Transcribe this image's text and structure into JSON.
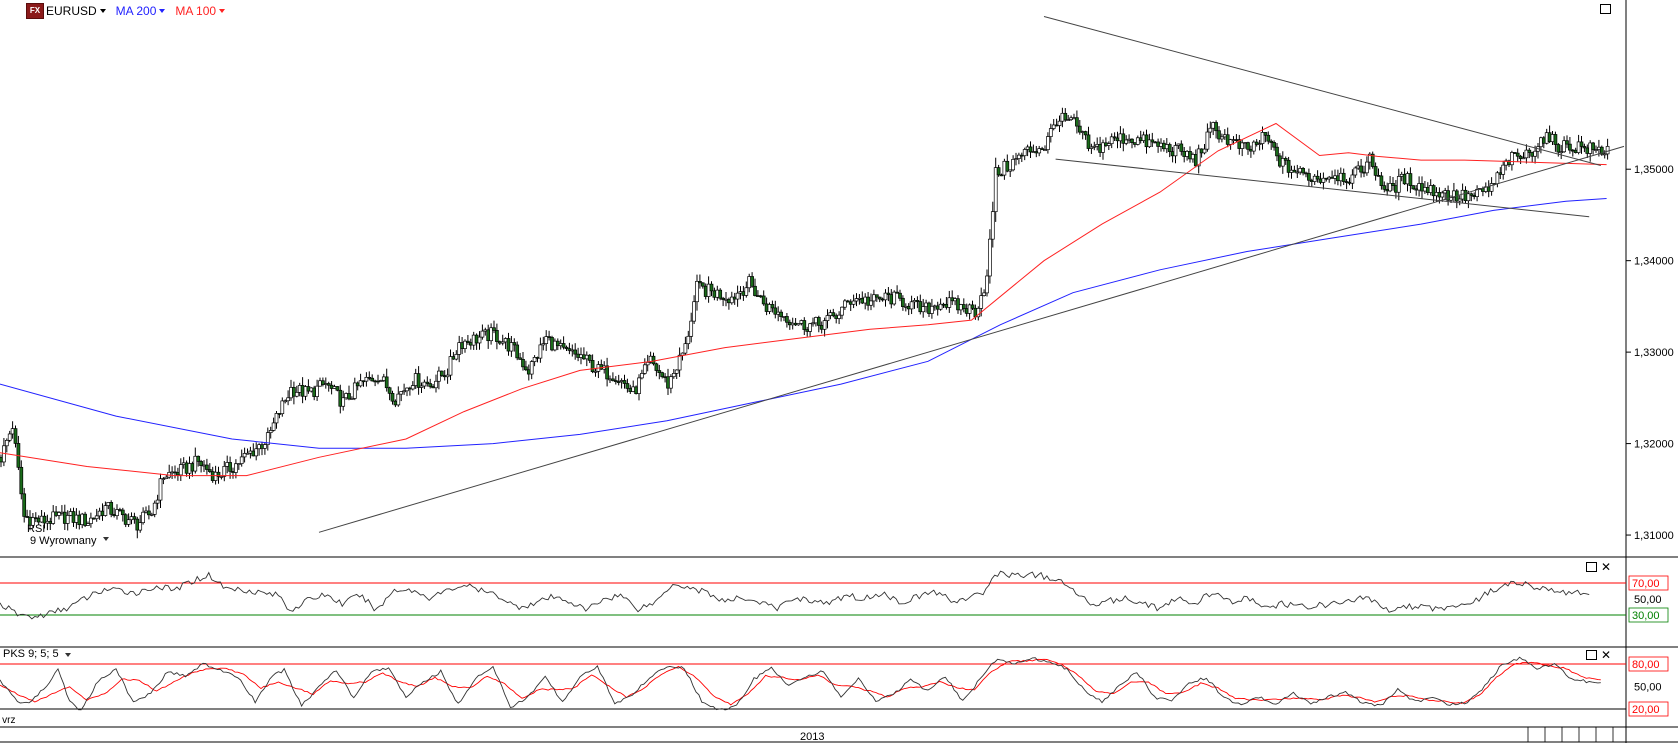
{
  "header": {
    "logo": "FX",
    "symbol": "EURUSD",
    "indicators": [
      {
        "label": "MA 200",
        "color": "#2222ff"
      },
      {
        "label": "MA 100",
        "color": "#ff2222"
      }
    ]
  },
  "rsi_panel": {
    "title": "RSI",
    "params": "9 Wyrownany",
    "levels": [
      {
        "label": "70,00",
        "value": 70,
        "color": "#ff0000"
      },
      {
        "label": "30,00",
        "value": 30,
        "color": "#008000"
      }
    ],
    "axis_tick": "50,00"
  },
  "pks_panel": {
    "title": "PKS 9; 5; 5",
    "levels": [
      {
        "label": "80,00",
        "value": 80,
        "color": "#ff0000"
      },
      {
        "label": "20,00",
        "value": 20,
        "color": "#000000"
      }
    ],
    "axis_tick": "50,00"
  },
  "time_axis": {
    "left_fragment": ") vrz",
    "year_label": "2013"
  },
  "chart_data": {
    "type": "candlestick",
    "title": "EURUSD",
    "y_ticks": [
      "1,35000",
      "1,34000",
      "1,33000",
      "1,32000",
      "1,31000"
    ],
    "y_tick_values": [
      1.35,
      1.34,
      1.33,
      1.32,
      1.31
    ],
    "ylim": [
      1.3076,
      1.3685
    ],
    "x_count": 220,
    "ma100_color": "#ff2222",
    "ma200_color": "#2222ff",
    "close_path": [
      [
        0,
        1.3185
      ],
      [
        4,
        1.322
      ],
      [
        8,
        1.312
      ],
      [
        14,
        1.3115
      ],
      [
        22,
        1.312
      ],
      [
        30,
        1.3115
      ],
      [
        36,
        1.313
      ],
      [
        42,
        1.312
      ],
      [
        47,
        1.3112
      ],
      [
        52,
        1.3125
      ],
      [
        56,
        1.3165
      ],
      [
        62,
        1.317
      ],
      [
        68,
        1.318
      ],
      [
        74,
        1.3165
      ],
      [
        80,
        1.3175
      ],
      [
        86,
        1.319
      ],
      [
        92,
        1.3205
      ],
      [
        96,
        1.3235
      ],
      [
        100,
        1.326
      ],
      [
        106,
        1.3255
      ],
      [
        112,
        1.3265
      ],
      [
        118,
        1.3245
      ],
      [
        124,
        1.3265
      ],
      [
        130,
        1.3275
      ],
      [
        136,
        1.325
      ],
      [
        142,
        1.327
      ],
      [
        148,
        1.3265
      ],
      [
        154,
        1.328
      ],
      [
        158,
        1.331
      ],
      [
        164,
        1.3315
      ],
      [
        170,
        1.332
      ],
      [
        176,
        1.3305
      ],
      [
        182,
        1.328
      ],
      [
        188,
        1.3315
      ],
      [
        194,
        1.33
      ],
      [
        200,
        1.3295
      ],
      [
        206,
        1.328
      ],
      [
        212,
        1.3275
      ],
      [
        218,
        1.3255
      ],
      [
        224,
        1.329
      ],
      [
        230,
        1.3265
      ],
      [
        236,
        1.3305
      ],
      [
        240,
        1.337
      ],
      [
        246,
        1.3365
      ],
      [
        252,
        1.336
      ],
      [
        258,
        1.3375
      ],
      [
        264,
        1.335
      ],
      [
        270,
        1.334
      ],
      [
        276,
        1.333
      ],
      [
        282,
        1.333
      ],
      [
        288,
        1.334
      ],
      [
        294,
        1.336
      ],
      [
        300,
        1.3355
      ],
      [
        306,
        1.336
      ],
      [
        312,
        1.3355
      ],
      [
        318,
        1.3345
      ],
      [
        324,
        1.3355
      ],
      [
        330,
        1.335
      ],
      [
        336,
        1.3345
      ],
      [
        340,
        1.338
      ],
      [
        343,
        1.3495
      ],
      [
        348,
        1.3505
      ],
      [
        354,
        1.352
      ],
      [
        360,
        1.3525
      ],
      [
        364,
        1.3555
      ],
      [
        370,
        1.355
      ],
      [
        376,
        1.352
      ],
      [
        382,
        1.353
      ],
      [
        388,
        1.3535
      ],
      [
        394,
        1.353
      ],
      [
        400,
        1.3525
      ],
      [
        406,
        1.352
      ],
      [
        412,
        1.351
      ],
      [
        418,
        1.3545
      ],
      [
        424,
        1.353
      ],
      [
        430,
        1.352
      ],
      [
        436,
        1.3535
      ],
      [
        442,
        1.3505
      ],
      [
        448,
        1.3495
      ],
      [
        454,
        1.349
      ],
      [
        460,
        1.3495
      ],
      [
        466,
        1.349
      ],
      [
        472,
        1.351
      ],
      [
        478,
        1.3475
      ],
      [
        484,
        1.349
      ],
      [
        490,
        1.348
      ],
      [
        496,
        1.3475
      ],
      [
        502,
        1.347
      ],
      [
        508,
        1.347
      ],
      [
        514,
        1.348
      ],
      [
        520,
        1.351
      ],
      [
        526,
        1.3515
      ],
      [
        532,
        1.3535
      ],
      [
        538,
        1.3525
      ],
      [
        544,
        1.3525
      ],
      [
        550,
        1.352
      ],
      [
        554,
        1.3522
      ]
    ],
    "ma100": [
      [
        0,
        1.319
      ],
      [
        30,
        1.3175
      ],
      [
        60,
        1.3165
      ],
      [
        85,
        1.3165
      ],
      [
        110,
        1.3185
      ],
      [
        140,
        1.3205
      ],
      [
        160,
        1.3235
      ],
      [
        180,
        1.326
      ],
      [
        200,
        1.328
      ],
      [
        225,
        1.329
      ],
      [
        250,
        1.3305
      ],
      [
        275,
        1.3315
      ],
      [
        300,
        1.3325
      ],
      [
        320,
        1.333
      ],
      [
        335,
        1.3335
      ],
      [
        360,
        1.34
      ],
      [
        380,
        1.344
      ],
      [
        400,
        1.3475
      ],
      [
        420,
        1.352
      ],
      [
        440,
        1.355
      ],
      [
        455,
        1.3515
      ],
      [
        465,
        1.3518
      ],
      [
        475,
        1.3514
      ],
      [
        490,
        1.351
      ],
      [
        505,
        1.351
      ],
      [
        525,
        1.3508
      ],
      [
        554,
        1.3505
      ]
    ],
    "ma200": [
      [
        0,
        1.3265
      ],
      [
        40,
        1.323
      ],
      [
        80,
        1.3205
      ],
      [
        110,
        1.3195
      ],
      [
        140,
        1.3195
      ],
      [
        170,
        1.32
      ],
      [
        200,
        1.321
      ],
      [
        230,
        1.3225
      ],
      [
        260,
        1.3245
      ],
      [
        290,
        1.3265
      ],
      [
        320,
        1.329
      ],
      [
        345,
        1.333
      ],
      [
        370,
        1.3365
      ],
      [
        400,
        1.339
      ],
      [
        430,
        1.341
      ],
      [
        460,
        1.3425
      ],
      [
        490,
        1.344
      ],
      [
        515,
        1.3455
      ],
      [
        540,
        1.3465
      ],
      [
        554,
        1.3468
      ]
    ],
    "trendlines": [
      {
        "from": [
          110,
          1.3103
        ],
        "to": [
          560,
          1.3525
        ]
      },
      {
        "from": [
          360,
          1.3667
        ],
        "to": [
          552,
          1.3504
        ]
      },
      {
        "from": [
          364,
          1.3511
        ],
        "to": [
          548,
          1.3448
        ]
      }
    ],
    "rsi": [
      [
        0,
        44
      ],
      [
        6,
        31
      ],
      [
        12,
        27
      ],
      [
        18,
        33
      ],
      [
        24,
        40
      ],
      [
        30,
        52
      ],
      [
        36,
        62
      ],
      [
        42,
        60
      ],
      [
        48,
        58
      ],
      [
        54,
        66
      ],
      [
        60,
        61
      ],
      [
        66,
        72
      ],
      [
        72,
        80
      ],
      [
        78,
        63
      ],
      [
        84,
        62
      ],
      [
        90,
        58
      ],
      [
        96,
        55
      ],
      [
        100,
        36
      ],
      [
        106,
        48
      ],
      [
        112,
        56
      ],
      [
        118,
        44
      ],
      [
        124,
        55
      ],
      [
        130,
        36
      ],
      [
        136,
        62
      ],
      [
        142,
        61
      ],
      [
        148,
        52
      ],
      [
        154,
        60
      ],
      [
        160,
        68
      ],
      [
        166,
        60
      ],
      [
        172,
        54
      ],
      [
        178,
        40
      ],
      [
        184,
        44
      ],
      [
        190,
        52
      ],
      [
        196,
        48
      ],
      [
        202,
        36
      ],
      [
        208,
        50
      ],
      [
        214,
        55
      ],
      [
        220,
        38
      ],
      [
        226,
        46
      ],
      [
        232,
        70
      ],
      [
        238,
        64
      ],
      [
        244,
        58
      ],
      [
        250,
        46
      ],
      [
        256,
        52
      ],
      [
        262,
        46
      ],
      [
        268,
        38
      ],
      [
        274,
        52
      ],
      [
        280,
        48
      ],
      [
        286,
        44
      ],
      [
        292,
        55
      ],
      [
        298,
        50
      ],
      [
        304,
        58
      ],
      [
        310,
        46
      ],
      [
        316,
        52
      ],
      [
        322,
        60
      ],
      [
        328,
        48
      ],
      [
        334,
        50
      ],
      [
        340,
        60
      ],
      [
        343,
        82
      ],
      [
        350,
        80
      ],
      [
        358,
        80
      ],
      [
        364,
        74
      ],
      [
        370,
        62
      ],
      [
        376,
        44
      ],
      [
        382,
        48
      ],
      [
        388,
        50
      ],
      [
        394,
        46
      ],
      [
        400,
        38
      ],
      [
        406,
        50
      ],
      [
        412,
        44
      ],
      [
        418,
        58
      ],
      [
        424,
        46
      ],
      [
        430,
        52
      ],
      [
        436,
        38
      ],
      [
        442,
        44
      ],
      [
        448,
        40
      ],
      [
        454,
        42
      ],
      [
        460,
        44
      ],
      [
        466,
        48
      ],
      [
        472,
        52
      ],
      [
        478,
        36
      ],
      [
        484,
        42
      ],
      [
        490,
        40
      ],
      [
        496,
        38
      ],
      [
        502,
        42
      ],
      [
        508,
        46
      ],
      [
        514,
        60
      ],
      [
        520,
        68
      ],
      [
        526,
        70
      ],
      [
        532,
        62
      ],
      [
        538,
        58
      ],
      [
        544,
        60
      ],
      [
        548,
        54
      ]
    ],
    "pks_main": [
      [
        0,
        58
      ],
      [
        6,
        30
      ],
      [
        10,
        28
      ],
      [
        16,
        50
      ],
      [
        20,
        74
      ],
      [
        24,
        30
      ],
      [
        28,
        18
      ],
      [
        34,
        58
      ],
      [
        40,
        74
      ],
      [
        46,
        28
      ],
      [
        52,
        42
      ],
      [
        58,
        70
      ],
      [
        64,
        64
      ],
      [
        70,
        80
      ],
      [
        76,
        72
      ],
      [
        82,
        62
      ],
      [
        88,
        30
      ],
      [
        94,
        64
      ],
      [
        98,
        72
      ],
      [
        104,
        24
      ],
      [
        110,
        50
      ],
      [
        116,
        72
      ],
      [
        122,
        34
      ],
      [
        128,
        70
      ],
      [
        134,
        74
      ],
      [
        140,
        36
      ],
      [
        146,
        56
      ],
      [
        152,
        70
      ],
      [
        158,
        26
      ],
      [
        164,
        62
      ],
      [
        170,
        76
      ],
      [
        176,
        22
      ],
      [
        182,
        36
      ],
      [
        188,
        62
      ],
      [
        194,
        30
      ],
      [
        200,
        62
      ],
      [
        206,
        78
      ],
      [
        212,
        26
      ],
      [
        218,
        40
      ],
      [
        224,
        60
      ],
      [
        230,
        78
      ],
      [
        236,
        74
      ],
      [
        242,
        30
      ],
      [
        248,
        18
      ],
      [
        254,
        24
      ],
      [
        260,
        60
      ],
      [
        266,
        74
      ],
      [
        272,
        52
      ],
      [
        278,
        64
      ],
      [
        284,
        70
      ],
      [
        290,
        36
      ],
      [
        296,
        60
      ],
      [
        302,
        30
      ],
      [
        308,
        40
      ],
      [
        314,
        58
      ],
      [
        320,
        44
      ],
      [
        326,
        64
      ],
      [
        332,
        30
      ],
      [
        338,
        60
      ],
      [
        344,
        88
      ],
      [
        350,
        80
      ],
      [
        356,
        88
      ],
      [
        362,
        82
      ],
      [
        368,
        74
      ],
      [
        374,
        44
      ],
      [
        380,
        30
      ],
      [
        386,
        50
      ],
      [
        392,
        70
      ],
      [
        398,
        36
      ],
      [
        404,
        30
      ],
      [
        410,
        54
      ],
      [
        416,
        62
      ],
      [
        422,
        34
      ],
      [
        428,
        26
      ],
      [
        434,
        36
      ],
      [
        440,
        26
      ],
      [
        446,
        42
      ],
      [
        452,
        26
      ],
      [
        458,
        36
      ],
      [
        464,
        42
      ],
      [
        470,
        28
      ],
      [
        476,
        24
      ],
      [
        482,
        46
      ],
      [
        488,
        30
      ],
      [
        494,
        34
      ],
      [
        500,
        26
      ],
      [
        506,
        28
      ],
      [
        512,
        50
      ],
      [
        518,
        80
      ],
      [
        524,
        88
      ],
      [
        530,
        74
      ],
      [
        536,
        80
      ],
      [
        542,
        60
      ],
      [
        548,
        56
      ],
      [
        552,
        54
      ]
    ],
    "pks_signal": [
      [
        0,
        52
      ],
      [
        6,
        40
      ],
      [
        12,
        30
      ],
      [
        18,
        40
      ],
      [
        24,
        50
      ],
      [
        30,
        32
      ],
      [
        36,
        40
      ],
      [
        42,
        60
      ],
      [
        48,
        58
      ],
      [
        54,
        44
      ],
      [
        60,
        56
      ],
      [
        66,
        68
      ],
      [
        72,
        74
      ],
      [
        78,
        74
      ],
      [
        84,
        66
      ],
      [
        90,
        48
      ],
      [
        96,
        56
      ],
      [
        102,
        48
      ],
      [
        108,
        40
      ],
      [
        114,
        58
      ],
      [
        120,
        54
      ],
      [
        126,
        56
      ],
      [
        132,
        68
      ],
      [
        138,
        56
      ],
      [
        144,
        50
      ],
      [
        150,
        62
      ],
      [
        156,
        50
      ],
      [
        162,
        48
      ],
      [
        168,
        64
      ],
      [
        174,
        54
      ],
      [
        180,
        34
      ],
      [
        186,
        46
      ],
      [
        192,
        46
      ],
      [
        198,
        48
      ],
      [
        204,
        66
      ],
      [
        210,
        50
      ],
      [
        216,
        36
      ],
      [
        222,
        48
      ],
      [
        228,
        66
      ],
      [
        234,
        76
      ],
      [
        240,
        62
      ],
      [
        246,
        38
      ],
      [
        252,
        26
      ],
      [
        258,
        40
      ],
      [
        264,
        64
      ],
      [
        270,
        62
      ],
      [
        276,
        58
      ],
      [
        282,
        66
      ],
      [
        288,
        52
      ],
      [
        294,
        50
      ],
      [
        300,
        44
      ],
      [
        306,
        36
      ],
      [
        312,
        48
      ],
      [
        318,
        50
      ],
      [
        324,
        56
      ],
      [
        330,
        48
      ],
      [
        336,
        46
      ],
      [
        342,
        70
      ],
      [
        348,
        84
      ],
      [
        354,
        84
      ],
      [
        360,
        86
      ],
      [
        366,
        80
      ],
      [
        372,
        64
      ],
      [
        378,
        44
      ],
      [
        384,
        40
      ],
      [
        390,
        56
      ],
      [
        396,
        56
      ],
      [
        402,
        40
      ],
      [
        408,
        42
      ],
      [
        414,
        54
      ],
      [
        420,
        48
      ],
      [
        426,
        34
      ],
      [
        432,
        32
      ],
      [
        438,
        32
      ],
      [
        444,
        34
      ],
      [
        450,
        34
      ],
      [
        456,
        32
      ],
      [
        462,
        38
      ],
      [
        468,
        36
      ],
      [
        474,
        30
      ],
      [
        480,
        36
      ],
      [
        486,
        38
      ],
      [
        492,
        32
      ],
      [
        498,
        30
      ],
      [
        504,
        28
      ],
      [
        510,
        38
      ],
      [
        516,
        62
      ],
      [
        522,
        80
      ],
      [
        528,
        82
      ],
      [
        534,
        78
      ],
      [
        540,
        74
      ],
      [
        546,
        62
      ],
      [
        552,
        58
      ]
    ]
  }
}
